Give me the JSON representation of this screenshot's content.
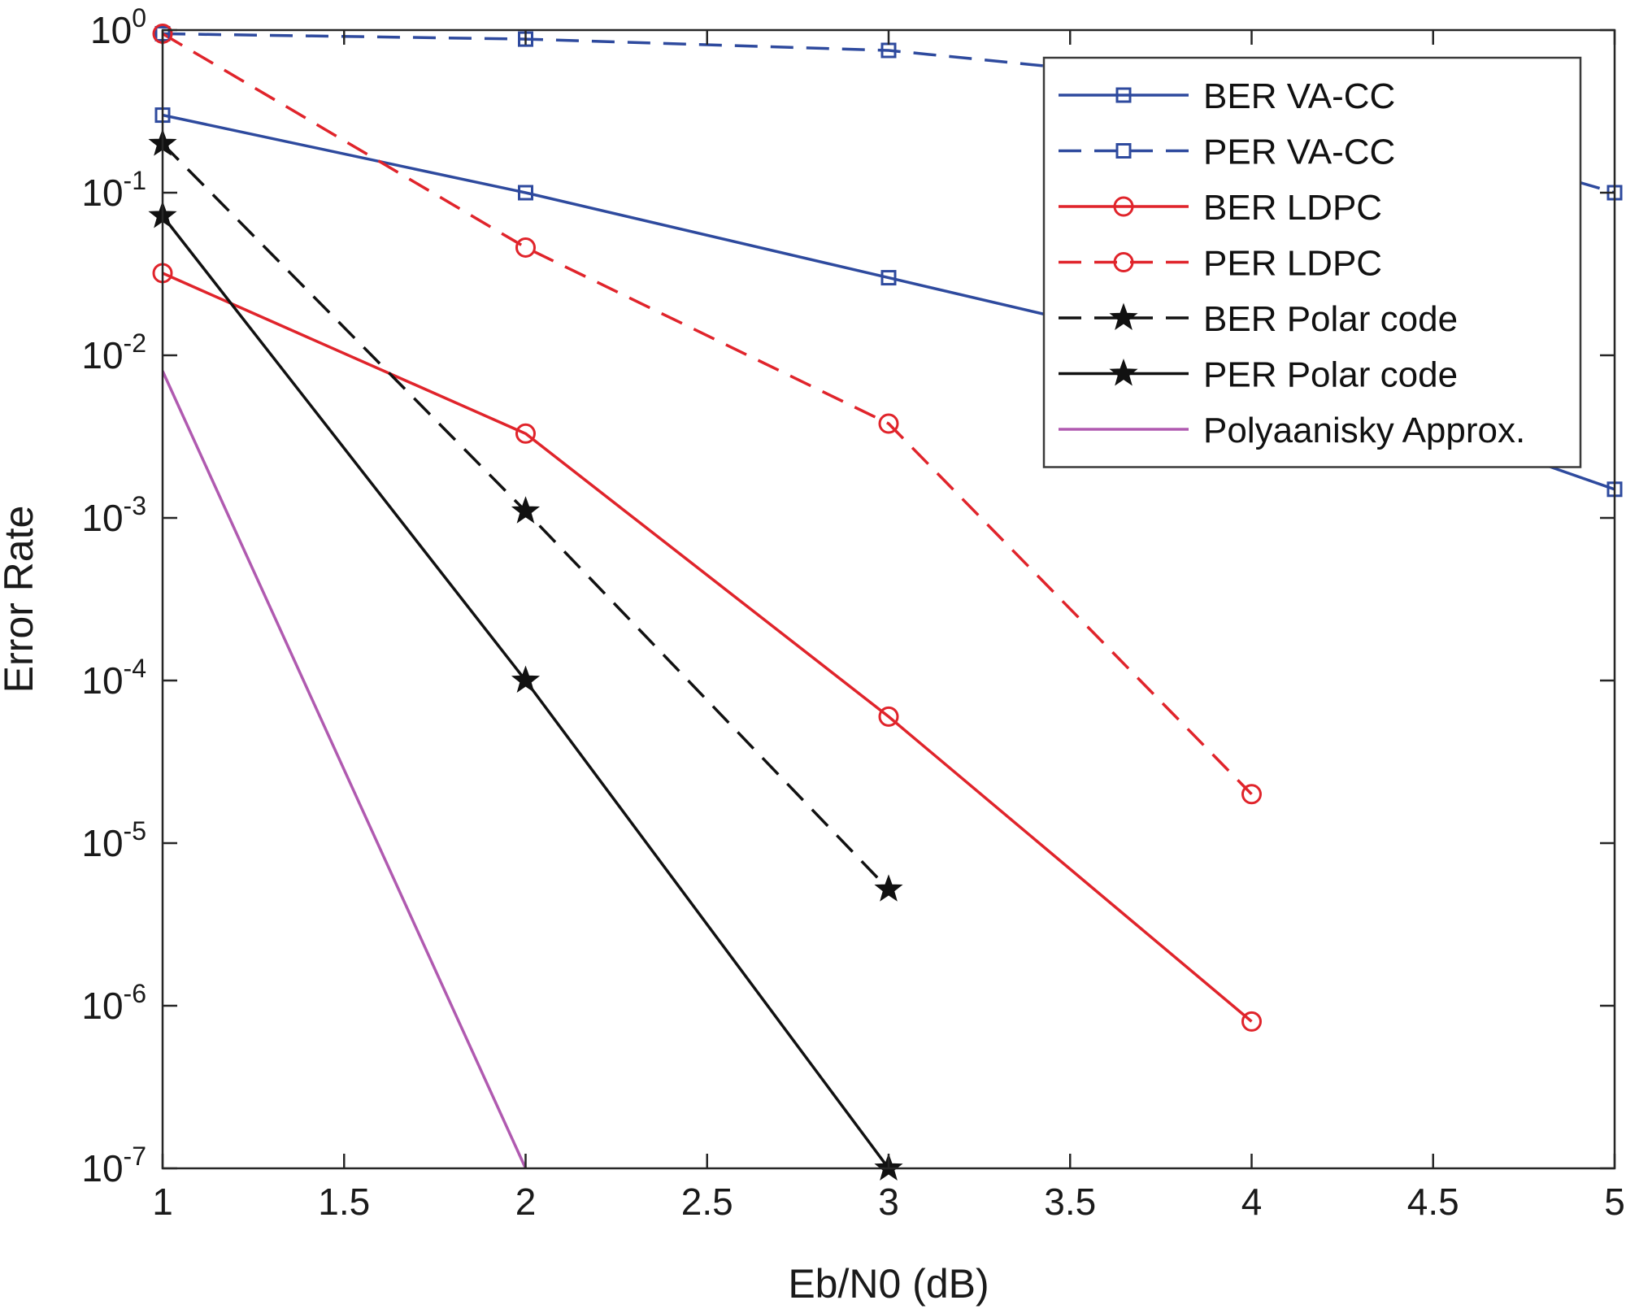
{
  "chart_data": {
    "type": "line",
    "xlabel": "Eb/N0 (dB)",
    "ylabel": "Error Rate",
    "xlim": [
      1,
      5
    ],
    "ylim": [
      1e-07,
      1
    ],
    "yscale": "log",
    "xticks": [
      1,
      1.5,
      2,
      2.5,
      3,
      3.5,
      4,
      4.5,
      5
    ],
    "xtick_labels": [
      "1",
      "1.5",
      "2",
      "2.5",
      "3",
      "3.5",
      "4",
      "4.5",
      "5"
    ],
    "yticks": [
      {
        "value": 1e-07,
        "base": "10",
        "exp": "-7"
      },
      {
        "value": 1e-06,
        "base": "10",
        "exp": "-6"
      },
      {
        "value": 1e-05,
        "base": "10",
        "exp": "-5"
      },
      {
        "value": 0.0001,
        "base": "10",
        "exp": "-4"
      },
      {
        "value": 0.001,
        "base": "10",
        "exp": "-3"
      },
      {
        "value": 0.01,
        "base": "10",
        "exp": "-2"
      },
      {
        "value": 0.1,
        "base": "10",
        "exp": "-1"
      },
      {
        "value": 1,
        "base": "10",
        "exp": "0"
      }
    ],
    "grid": false,
    "legend_position": "top-right",
    "series": [
      {
        "name": "BER VA-CC",
        "color": "#2e4a9e",
        "dash": "solid",
        "marker": "square",
        "x": [
          1,
          2,
          3,
          4,
          5
        ],
        "y": [
          0.3,
          0.1,
          0.03,
          0.009,
          0.0015
        ]
      },
      {
        "name": "PER VA-CC",
        "color": "#2e4a9e",
        "dash": "dashed",
        "marker": "square",
        "x": [
          1,
          2,
          3,
          4,
          5
        ],
        "y": [
          0.95,
          0.88,
          0.75,
          0.45,
          0.1
        ]
      },
      {
        "name": "BER LDPC",
        "color": "#e0242b",
        "dash": "solid",
        "marker": "circle",
        "x": [
          1,
          2,
          3,
          4
        ],
        "y": [
          0.032,
          0.0033,
          6e-05,
          8e-07
        ]
      },
      {
        "name": "PER LDPC",
        "color": "#e0242b",
        "dash": "dashed",
        "marker": "circle",
        "x": [
          1,
          2,
          3,
          4
        ],
        "y": [
          0.95,
          0.046,
          0.0038,
          2e-05
        ]
      },
      {
        "name": "BER Polar code",
        "color": "#111111",
        "dash": "dashed",
        "marker": "star",
        "x": [
          1,
          2,
          3
        ],
        "y": [
          0.2,
          0.0011,
          5.2e-06
        ]
      },
      {
        "name": "PER Polar code",
        "color": "#111111",
        "dash": "solid",
        "marker": "star",
        "x": [
          1,
          2,
          3
        ],
        "y": [
          0.072,
          0.0001,
          1e-07
        ]
      },
      {
        "name": "Polyaanisky Approx.",
        "color": "#b05ab0",
        "dash": "solid",
        "marker": "none",
        "x": [
          1,
          2
        ],
        "y": [
          0.008,
          1e-07
        ]
      }
    ]
  }
}
